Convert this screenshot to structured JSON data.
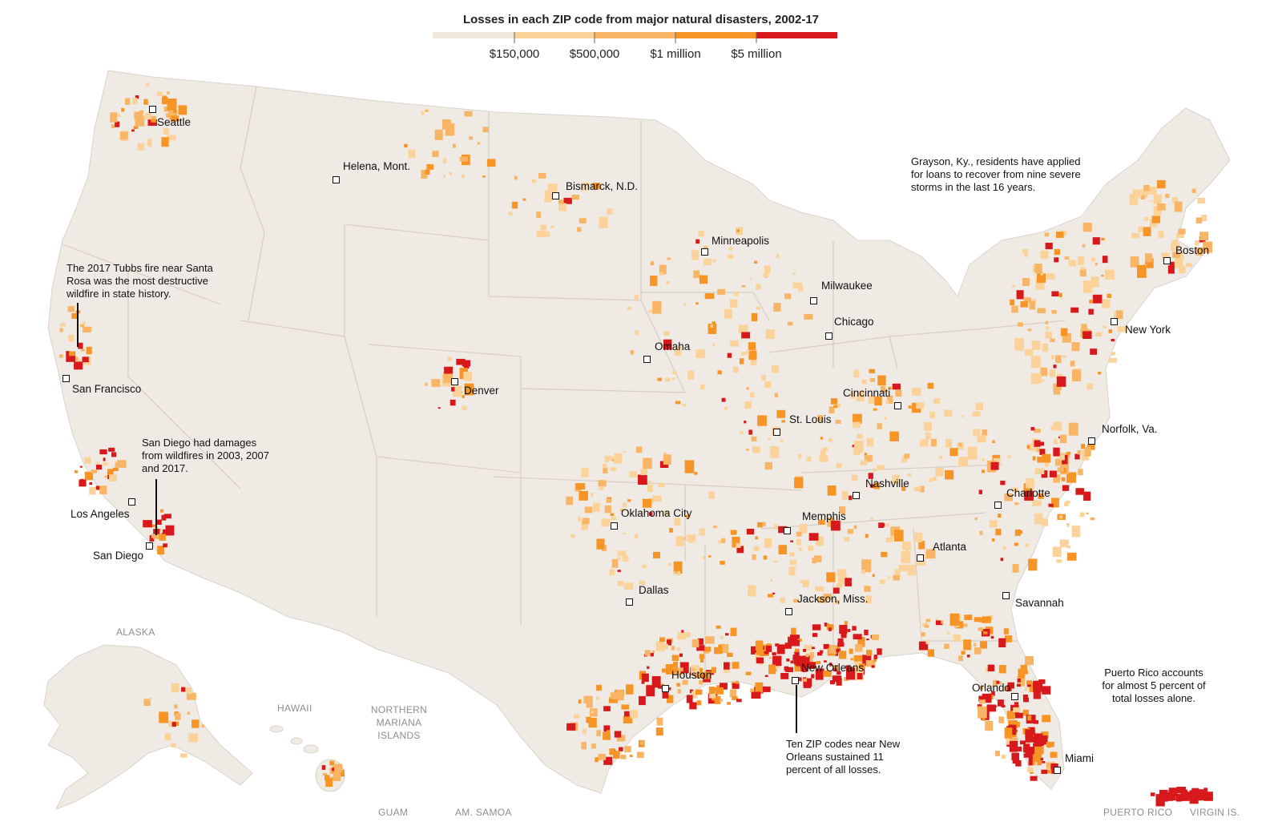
{
  "legend": {
    "title": "Losses in each ZIP code from major natural disasters, 2002-17",
    "labels": [
      "$150,000",
      "$500,000",
      "$1 million",
      "$5 million"
    ],
    "colors": [
      "#efe9dd",
      "#fbd39a",
      "#f8b566",
      "#f69526",
      "#d7191c"
    ]
  },
  "cities": [
    {
      "name": "Seattle"
    },
    {
      "name": "Helena, Mont."
    },
    {
      "name": "Bismarck, N.D."
    },
    {
      "name": "Minneapolis"
    },
    {
      "name": "Milwaukee"
    },
    {
      "name": "Chicago"
    },
    {
      "name": "Omaha"
    },
    {
      "name": "Denver"
    },
    {
      "name": "San Francisco"
    },
    {
      "name": "Cincinnati"
    },
    {
      "name": "St. Louis"
    },
    {
      "name": "Norfolk, Va."
    },
    {
      "name": "Nashville"
    },
    {
      "name": "Charlotte"
    },
    {
      "name": "Oklahoma City"
    },
    {
      "name": "Memphis"
    },
    {
      "name": "Los Angeles"
    },
    {
      "name": "San Diego"
    },
    {
      "name": "Atlanta"
    },
    {
      "name": "Dallas"
    },
    {
      "name": "Jackson, Miss."
    },
    {
      "name": "Savannah"
    },
    {
      "name": "Houston"
    },
    {
      "name": "New Orleans"
    },
    {
      "name": "Orlando"
    },
    {
      "name": "Miami"
    },
    {
      "name": "Boston"
    },
    {
      "name": "New York"
    }
  ],
  "annotations": {
    "grayson": "Grayson, Ky., residents have applied for loans to recover from nine severe storms in the last 16 years.",
    "tubbs": "The 2017 Tubbs fire near Santa Rosa was the most destructive wildfire in state history.",
    "sandiego": "San Diego had damages from wildfires in 2003, 2007 and 2017.",
    "neworleans": "Ten ZIP codes near New Orleans sustained 11 percent of all losses.",
    "puertorico": "Puerto Rico accounts for almost 5 percent of total losses alone."
  },
  "regions": {
    "alaska": "ALASKA",
    "hawaii": "HAWAII",
    "northern_mariana": "NORTHERN MARIANA ISLANDS",
    "guam": "GUAM",
    "am_samoa": "AM. SAMOA",
    "puerto_rico": "PUERTO RICO",
    "virgin_is": "VIRGIN IS."
  }
}
